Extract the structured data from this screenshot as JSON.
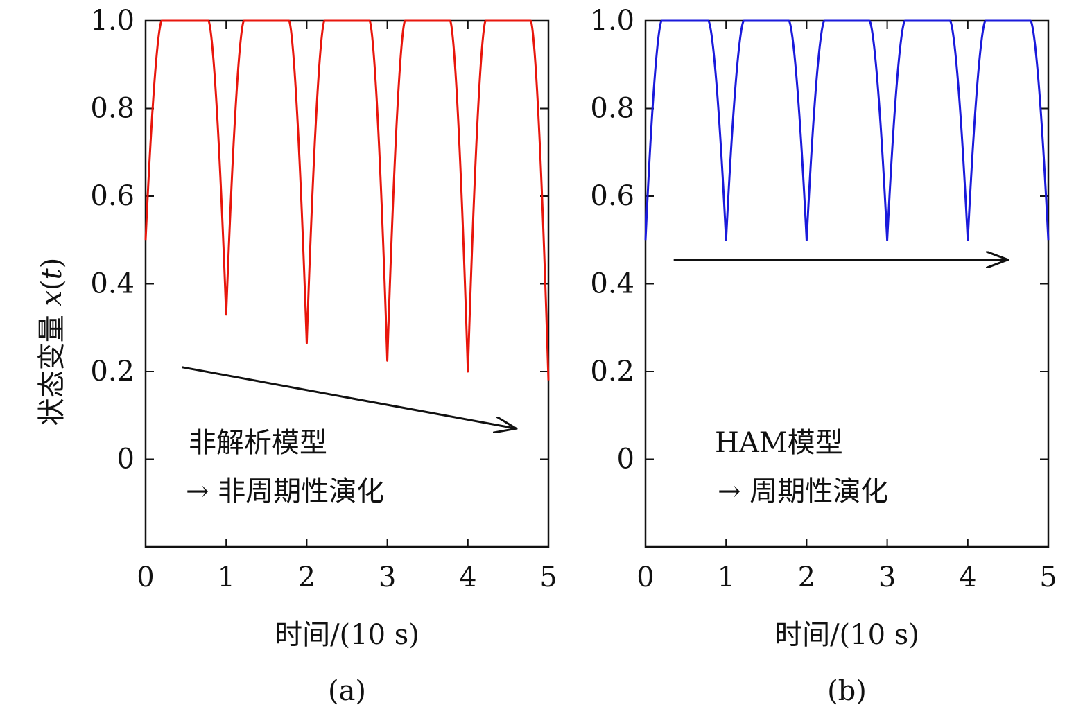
{
  "y_label_cn": "状态变量 ",
  "y_label_var": "x",
  "y_label_paren_open": "(",
  "y_label_t": "t",
  "y_label_paren_close": ")",
  "chart_data": [
    {
      "type": "line",
      "panel_label": "(a)",
      "xlabel": "时间/(10 s)",
      "ylabel": "状态变量 x(t)",
      "xlim": [
        0,
        5
      ],
      "ylim": [
        -0.2,
        1.0
      ],
      "x_ticks": [
        0,
        1,
        2,
        3,
        4,
        5
      ],
      "x_tick_labels": [
        "0",
        "1",
        "2",
        "3",
        "4",
        "5"
      ],
      "y_ticks": [
        0,
        0.2,
        0.4,
        0.6,
        0.8,
        1.0
      ],
      "y_tick_labels": [
        "0",
        "0.2",
        "0.4",
        "0.6",
        "0.8",
        "1.0"
      ],
      "series": [
        {
          "name": "非解析模型",
          "color": "#e8160c",
          "start_value": 0.5,
          "plateau": 1.0,
          "minima": [
            {
              "x": 1,
              "y": 0.33
            },
            {
              "x": 2,
              "y": 0.265
            },
            {
              "x": 3,
              "y": 0.225
            },
            {
              "x": 4,
              "y": 0.2
            },
            {
              "x": 5,
              "y": 0.18
            }
          ]
        }
      ],
      "annotations": {
        "line1": "非解析模型",
        "line2": "→ 非周期性演化",
        "arrow": {
          "from": [
            0.45,
            0.21
          ],
          "to": [
            4.6,
            0.07
          ]
        }
      }
    },
    {
      "type": "line",
      "panel_label": "(b)",
      "xlabel": "时间/(10 s)",
      "ylabel": "",
      "xlim": [
        0,
        5
      ],
      "ylim": [
        -0.2,
        1.0
      ],
      "x_ticks": [
        0,
        1,
        2,
        3,
        4,
        5
      ],
      "x_tick_labels": [
        "0",
        "1",
        "2",
        "3",
        "4",
        "5"
      ],
      "y_ticks": [
        0,
        0.2,
        0.4,
        0.6,
        0.8,
        1.0
      ],
      "y_tick_labels": [
        "0",
        "0.2",
        "0.4",
        "0.6",
        "0.8",
        "1.0"
      ],
      "series": [
        {
          "name": "HAM模型",
          "color": "#1a1adb",
          "start_value": 0.5,
          "plateau": 1.0,
          "minima": [
            {
              "x": 1,
              "y": 0.5
            },
            {
              "x": 2,
              "y": 0.5
            },
            {
              "x": 3,
              "y": 0.5
            },
            {
              "x": 4,
              "y": 0.5
            },
            {
              "x": 5,
              "y": 0.5
            }
          ]
        }
      ],
      "annotations": {
        "line1": "HAM模型",
        "line2": "→ 周期性演化",
        "arrow": {
          "from": [
            0.35,
            0.455
          ],
          "to": [
            4.5,
            0.455
          ]
        }
      }
    }
  ]
}
